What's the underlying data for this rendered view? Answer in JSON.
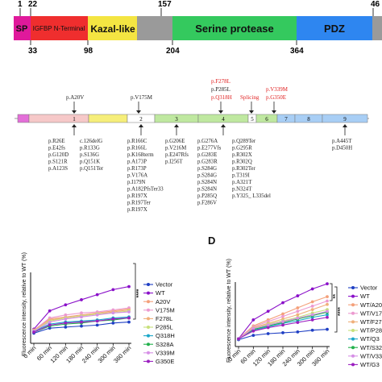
{
  "domain_bar": {
    "top_numbers": [
      "1",
      "22",
      "157",
      "46"
    ],
    "bottom_numbers": [
      "33",
      "98",
      "204",
      "364"
    ],
    "domains": [
      {
        "label": "SP",
        "color": "#e0199b"
      },
      {
        "label": "IGFBP N-Terminal",
        "color": "#ef2e2e"
      },
      {
        "label": "Kazal-like",
        "color": "#f4e542"
      },
      {
        "label": "",
        "color": "#9a9a9a"
      },
      {
        "label": "Serine protease",
        "color": "#34c95e"
      },
      {
        "label": "PDZ",
        "color": "#2e86f0"
      },
      {
        "label": "",
        "color": "#9a9a9a"
      }
    ]
  },
  "exon_map": {
    "exon_numbers": [
      "1",
      "2",
      "3",
      "4",
      "5",
      "6",
      "7",
      "8",
      "9"
    ],
    "above_labels": {
      "a20v": "p.A20V",
      "v175m": "p.V175M",
      "f278l": "p.F278L",
      "p285l": "p.P285L",
      "q318h": "p.Q318H",
      "splicing": "Splicing",
      "v339m": "p.V339M",
      "g350e": "p.G350E"
    },
    "exon1_col1": [
      "p.R26E",
      "p.E42fs",
      "p.G120D",
      "p.S121R",
      "p.A123S"
    ],
    "exon1_col2": [
      "c.126delG",
      "p.R133G",
      "p.S136G",
      "p.Q151K",
      "p.Q151Ter"
    ],
    "exon2": [
      "p.R166C",
      "p.R166L",
      "p.K168term",
      "p.A173P",
      "p.R173P",
      "p.V176A",
      "p.I179N",
      "p.A182PfsTer33",
      "p.R197X",
      "p.R197Ter",
      "p.R197X"
    ],
    "exon3": [
      "p.G206E",
      "p.V216M",
      "p.E247Rfs",
      "p.I256T"
    ],
    "exon4_col1": [
      "p.G276A",
      "p.E277Vfs",
      "p.G283E",
      "p.G283R",
      "p.S284G",
      "p.S284G",
      "p.S284N",
      "p.S284N",
      "p.P285Q",
      "p.F286V"
    ],
    "exon4_col2": [
      "p.Q289Ter",
      "p.G295R",
      "p.R302X",
      "p.R302Q",
      "p.R302Ter",
      "p.T319I",
      "p.A321T",
      "p.N324T",
      "p.Y325_ L335del"
    ],
    "exon9": [
      "p.A445T",
      "p.D450H"
    ]
  },
  "panel_d_label": "D",
  "chart_data": [
    {
      "type": "line",
      "ylabel": "Fluorescence intensity, relative to WT (%)",
      "categories": [
        "0 min",
        "60 min",
        "120 min",
        "180 min",
        "240 min",
        "300 min",
        "360 min"
      ],
      "significance": "****",
      "series": [
        {
          "name": "Vector",
          "color": "#1f3fc4",
          "values": [
            40,
            45,
            46,
            47,
            48,
            50,
            51
          ]
        },
        {
          "name": "WT",
          "color": "#8a10c9",
          "values": [
            44,
            62,
            68,
            73,
            78,
            83,
            86
          ]
        },
        {
          "name": "A20V",
          "color": "#f4a07a",
          "values": [
            43,
            54,
            56,
            58,
            60,
            62,
            64
          ]
        },
        {
          "name": "V175M",
          "color": "#ec9ad0",
          "values": [
            43,
            55,
            58,
            60,
            61,
            63,
            65
          ]
        },
        {
          "name": "F278L",
          "color": "#f0b07a",
          "values": [
            43,
            53,
            55,
            57,
            59,
            61,
            63
          ]
        },
        {
          "name": "P285L",
          "color": "#c7e07a",
          "values": [
            42,
            52,
            55,
            57,
            59,
            60,
            62
          ]
        },
        {
          "name": "Q318H",
          "color": "#1aa7c9",
          "values": [
            42,
            49,
            51,
            52,
            53,
            55,
            56
          ]
        },
        {
          "name": "S328A",
          "color": "#22b14c",
          "values": [
            41,
            47,
            49,
            50,
            52,
            53,
            55
          ]
        },
        {
          "name": "V339M",
          "color": "#d68fe6",
          "values": [
            42,
            51,
            54,
            56,
            58,
            60,
            61
          ]
        },
        {
          "name": "G350E",
          "color": "#9b1fc0",
          "values": [
            41,
            48,
            50,
            51,
            52,
            54,
            55
          ]
        }
      ]
    },
    {
      "type": "line",
      "ylabel": "Fluorescence intensity, relative to WT (%)",
      "categories": [
        "0 min",
        "60 min",
        "120 min",
        "180 min",
        "240 min",
        "300 min",
        "360 min"
      ],
      "significance": [
        "**",
        "****"
      ],
      "series": [
        {
          "name": "Vector",
          "color": "#1f3fc4",
          "values": [
            33,
            38,
            40,
            41,
            42,
            44,
            45
          ]
        },
        {
          "name": "WT",
          "color": "#8a10c9",
          "values": [
            34,
            56,
            66,
            76,
            84,
            92,
            98
          ]
        },
        {
          "name": "WT/A20",
          "color": "#f4a07a",
          "values": [
            34,
            49,
            56,
            63,
            70,
            77,
            83
          ]
        },
        {
          "name": "WT/V17",
          "color": "#ec9ad0",
          "values": [
            34,
            48,
            54,
            60,
            66,
            72,
            78
          ]
        },
        {
          "name": "WT/F27",
          "color": "#f0b07a",
          "values": [
            34,
            47,
            52,
            57,
            62,
            68,
            74
          ]
        },
        {
          "name": "WT/P28",
          "color": "#c7e07a",
          "values": [
            34,
            46,
            51,
            55,
            59,
            64,
            68
          ]
        },
        {
          "name": "WT/Q3",
          "color": "#1aa7c9",
          "values": [
            34,
            44,
            48,
            52,
            55,
            59,
            62
          ]
        },
        {
          "name": "WT/S32",
          "color": "#22b14c",
          "values": [
            34,
            45,
            49,
            53,
            57,
            61,
            65
          ]
        },
        {
          "name": "WT/V33",
          "color": "#d68fe6",
          "values": [
            34,
            46,
            50,
            54,
            58,
            62,
            66
          ]
        },
        {
          "name": "WT/G3",
          "color": "#9b1fc0",
          "values": [
            34,
            43,
            47,
            50,
            53,
            56,
            59
          ]
        }
      ]
    }
  ]
}
